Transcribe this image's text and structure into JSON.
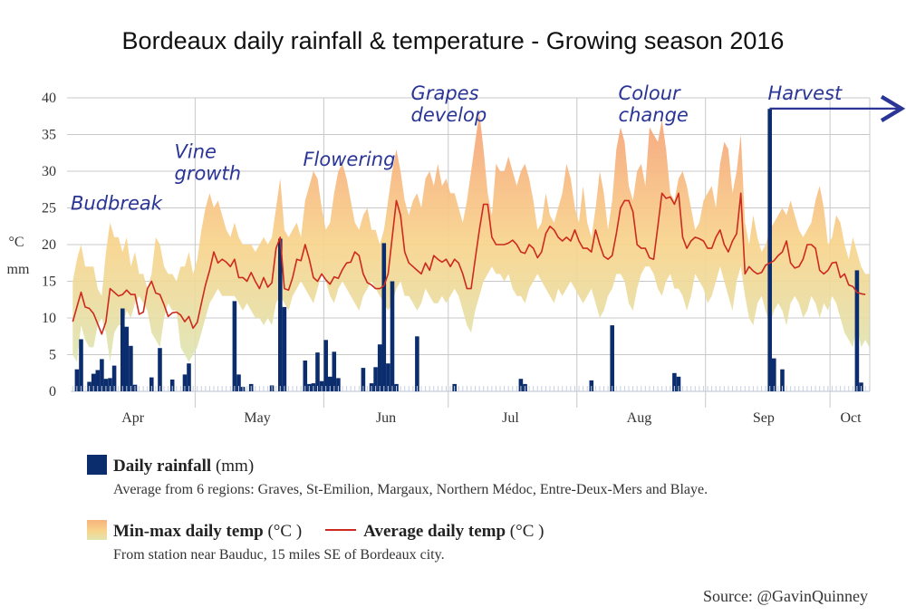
{
  "title": "Bordeaux daily rainfall & temperature - Growing season 2016",
  "legend": {
    "rain_label": "Daily rainfall",
    "rain_unit": " (mm)",
    "rain_desc": "Average from 6 regions: Graves, St-Emilion, Margaux, Northern Médoc, Entre-Deux-Mers and Blaye.",
    "temp_range_label": "Min-max daily temp",
    "temp_range_unit": " (°C )",
    "temp_avg_label": "Average daily temp",
    "temp_avg_unit": " (°C )",
    "temp_desc": "From station near Bauduc, 15 miles SE of Bordeaux city."
  },
  "source": "Source: @GavinQuinney",
  "colors": {
    "rain": "#0b2d6e",
    "avg_line": "#cc2a1e",
    "band_top": "#f6a97a",
    "band_mid": "#f8d48c",
    "band_bottom": "#dfe4b2",
    "annotation": "#2a3596",
    "grid": "#c8c8c8"
  },
  "chart_data": {
    "type": "bar+area+line",
    "title": "Bordeaux daily rainfall & temperature - Growing season 2016",
    "ylabel": [
      "°C",
      "mm"
    ],
    "ylim": [
      0,
      40
    ],
    "yticks": [
      0,
      5,
      10,
      15,
      20,
      25,
      30,
      35,
      40
    ],
    "start_date": "2016-04-01",
    "n_days": 193,
    "month_ticks": [
      {
        "label": "Apr",
        "day": 0,
        "label_day": 15
      },
      {
        "label": "May",
        "day": 30,
        "label_day": 45
      },
      {
        "label": "Jun",
        "day": 61,
        "label_day": 76
      },
      {
        "label": "Jul",
        "day": 91,
        "label_day": 106
      },
      {
        "label": "Aug",
        "day": 122,
        "label_day": 137
      },
      {
        "label": "Sep",
        "day": 153,
        "label_day": 167
      },
      {
        "label": "Oct",
        "day": 183,
        "label_day": 188
      }
    ],
    "annotations": [
      {
        "lines": [
          "Budbreak"
        ],
        "day": 0,
        "value": 26
      },
      {
        "lines": [
          "Vine",
          "growth"
        ],
        "day": 25,
        "value": 33
      },
      {
        "lines": [
          "Flowering"
        ],
        "day": 56,
        "value": 32
      },
      {
        "lines": [
          "Grapes",
          "develop"
        ],
        "day": 82,
        "value": 41
      },
      {
        "lines": [
          "Colour",
          "change"
        ],
        "day": 132,
        "value": 41
      },
      {
        "lines": [
          "Harvest"
        ],
        "day": 168,
        "value": 41,
        "arrow": true
      }
    ],
    "series": [
      {
        "name": "Daily rainfall (mm)",
        "type": "bar",
        "values": [
          0,
          3.0,
          7.1,
          0,
          1.3,
          2.4,
          2.9,
          4.4,
          1.7,
          1.8,
          3.5,
          0,
          11.3,
          8.8,
          6.2,
          0.9,
          0,
          0,
          0,
          1.9,
          0,
          5.9,
          0,
          0,
          1.6,
          0,
          0,
          2.3,
          3.8,
          0,
          0,
          0,
          0,
          0,
          0,
          0,
          0,
          0,
          0,
          12.3,
          2.3,
          0.6,
          0,
          1.0,
          0,
          0,
          0,
          0,
          0.8,
          0,
          20.8,
          11.5,
          0,
          0,
          0,
          0,
          4.2,
          1.0,
          1.1,
          5.3,
          1.4,
          7.0,
          2.0,
          5.4,
          1.8,
          0,
          0,
          0,
          0,
          0,
          3.2,
          0,
          1.1,
          3.3,
          6.4,
          20.2,
          3.8,
          15.0,
          1.0,
          0,
          0,
          0,
          0,
          7.5,
          0,
          0,
          0,
          0,
          0,
          0,
          0,
          0,
          1.0,
          0,
          0,
          0,
          0,
          0,
          0,
          0,
          0,
          0,
          0,
          0,
          0,
          0,
          0,
          0,
          1.7,
          1.0,
          0,
          0,
          0,
          0,
          0,
          0,
          0,
          0,
          0,
          0,
          0,
          0,
          0,
          0,
          0,
          1.5,
          0,
          0,
          0,
          0,
          9.0,
          0,
          0,
          0,
          0,
          0,
          0,
          0,
          0,
          0,
          0,
          0,
          0,
          0,
          0,
          2.5,
          2.0,
          0,
          0,
          0,
          0,
          0,
          0,
          0,
          0,
          0,
          0,
          0,
          0,
          0,
          0,
          0,
          0,
          0,
          0,
          0,
          0,
          0,
          38.5,
          4.5,
          0,
          3.0,
          0,
          0,
          0,
          0,
          0,
          0,
          0,
          0,
          0,
          0,
          0,
          0,
          0,
          0,
          0,
          0,
          0,
          16.5,
          1.2,
          0,
          0,
          0,
          0,
          0,
          0,
          0,
          0,
          0,
          0,
          0,
          0
        ]
      },
      {
        "name": "Max daily temp (°C)",
        "type": "area-top",
        "values": [
          15,
          18,
          20,
          17,
          17,
          17,
          14,
          13,
          19,
          23,
          21,
          21,
          19,
          21,
          17,
          19,
          16,
          16,
          14,
          16,
          21,
          20,
          17,
          16,
          16,
          15,
          17,
          17,
          19,
          16,
          18,
          22,
          25,
          27,
          25,
          26,
          24,
          22,
          21,
          23,
          21,
          20,
          20,
          20,
          19,
          20,
          21,
          20,
          21,
          25,
          29,
          22,
          21,
          22,
          23,
          21,
          26,
          28,
          30,
          29,
          25,
          22,
          23,
          27,
          30,
          31,
          29,
          26,
          23,
          22,
          24,
          25,
          22,
          22,
          20,
          22,
          26,
          30,
          33,
          30,
          26,
          24,
          26,
          27,
          25,
          29,
          30,
          28,
          31,
          28,
          29,
          27,
          27,
          25,
          23,
          26,
          30,
          34,
          38,
          33,
          27,
          24,
          31,
          30,
          30,
          32,
          30,
          28,
          30,
          31,
          29,
          26,
          22,
          23,
          27,
          24,
          23,
          25,
          27,
          31,
          29,
          25,
          23,
          28,
          23,
          21,
          25,
          30,
          27,
          22,
          26,
          33,
          36,
          34,
          28,
          26,
          30,
          31,
          28,
          36,
          35,
          34,
          37,
          33,
          27,
          26,
          29,
          30,
          28,
          25,
          22,
          23,
          26,
          27,
          28,
          25,
          31,
          34,
          33,
          27,
          30,
          35,
          23,
          20,
          24,
          21,
          19,
          20,
          22,
          23,
          24,
          25,
          24,
          26,
          24,
          22,
          21,
          22,
          23,
          26,
          28,
          25,
          20,
          21,
          24,
          23,
          20,
          18,
          21,
          19,
          17,
          16,
          16
        ]
      },
      {
        "name": "Min daily temp (°C)",
        "type": "area-bottom",
        "values": [
          5,
          4,
          9,
          7,
          6,
          6,
          9,
          10,
          8,
          4,
          8,
          9,
          9,
          11,
          10,
          12,
          13,
          12,
          11,
          8,
          7,
          6,
          10,
          12,
          11,
          11,
          6,
          5,
          4,
          5,
          6,
          8,
          10,
          12,
          13,
          14,
          13,
          13,
          13,
          13,
          12,
          11,
          12,
          11,
          10,
          10,
          9,
          10,
          9,
          12,
          13,
          12,
          11,
          13,
          14,
          15,
          14,
          13,
          12,
          14,
          16,
          15,
          13,
          12,
          14,
          15,
          14,
          13,
          12,
          11,
          13,
          14,
          15,
          14,
          13,
          12,
          11,
          12,
          14,
          15,
          13,
          13,
          12,
          11,
          12,
          14,
          13,
          12,
          12,
          13,
          12,
          13,
          14,
          13,
          11,
          9,
          8,
          11,
          13,
          15,
          16,
          17,
          16,
          16,
          15,
          16,
          14,
          13,
          13,
          12,
          14,
          15,
          16,
          15,
          14,
          13,
          12,
          14,
          13,
          14,
          15,
          14,
          13,
          12,
          13,
          14,
          12,
          10,
          11,
          13,
          14,
          16,
          16,
          15,
          12,
          11,
          14,
          16,
          17,
          17,
          16,
          14,
          13,
          15,
          16,
          14,
          14,
          13,
          11,
          13,
          16,
          15,
          14,
          12,
          13,
          15,
          17,
          15,
          13,
          11,
          15,
          17,
          13,
          10,
          9,
          12,
          13,
          11,
          9,
          11,
          12,
          11,
          9,
          12,
          13,
          12,
          10,
          11,
          13,
          12,
          10,
          12,
          11,
          13,
          12,
          10,
          8,
          7,
          6,
          9,
          6,
          7,
          6
        ]
      },
      {
        "name": "Average daily temp (°C)",
        "type": "line",
        "values": [
          9.5,
          11.5,
          13.5,
          11.5,
          11.3,
          10.6,
          9.2,
          7.8,
          9.5,
          14.0,
          13.5,
          13.0,
          13.2,
          13.8,
          13.2,
          13.2,
          10.5,
          10.8,
          14.0,
          15.0,
          13.4,
          13.2,
          11.8,
          10.2,
          10.7,
          10.8,
          10.4,
          9.5,
          10.2,
          8.6,
          9.4,
          12.0,
          14.5,
          16.5,
          19.0,
          17.5,
          18.0,
          17.6,
          17.0,
          18.0,
          15.5,
          15.5,
          15.0,
          16.2,
          15.0,
          14.0,
          15.5,
          14.2,
          14.8,
          19.5,
          21.0,
          14.0,
          13.8,
          15.5,
          18.0,
          17.8,
          20.0,
          18.0,
          15.5,
          15.0,
          16.0,
          15.2,
          14.6,
          15.6,
          15.4,
          16.6,
          17.5,
          17.6,
          19.0,
          18.5,
          16.0,
          14.8,
          14.5,
          14.0,
          14.0,
          14.4,
          16.0,
          21.0,
          26.0,
          24.0,
          19.0,
          17.5,
          17.0,
          16.5,
          16.0,
          17.5,
          16.5,
          18.5,
          18.0,
          17.6,
          18.0,
          17.0,
          18.0,
          17.5,
          16.0,
          14.0,
          14.0,
          18.0,
          22.0,
          25.5,
          25.5,
          21.0,
          20.0,
          20.0,
          20.0,
          20.2,
          20.6,
          20.0,
          19.0,
          18.8,
          20.0,
          19.5,
          18.2,
          19.0,
          21.5,
          22.5,
          22.0,
          21.0,
          20.5,
          21.0,
          20.5,
          22.0,
          20.5,
          19.5,
          19.5,
          19.0,
          22.0,
          20.0,
          18.4,
          18.0,
          18.5,
          21.5,
          25.0,
          26.0,
          26.0,
          24.5,
          20.0,
          19.5,
          19.5,
          18.2,
          18.0,
          22.5,
          27.0,
          26.3,
          26.5,
          25.5,
          27.0,
          21.0,
          19.5,
          20.5,
          21.0,
          20.8,
          20.5,
          19.5,
          19.5,
          21.0,
          22.0,
          20.0,
          19.0,
          20.5,
          21.5,
          27.0,
          16.0,
          17.0,
          16.4,
          16.0,
          16.2,
          17.2,
          17.5,
          17.8,
          18.5,
          19.0,
          20.5,
          17.5,
          16.8,
          17.0,
          18.0,
          20.0,
          20.0,
          19.5,
          16.5,
          16.0,
          16.5,
          17.5,
          17.6,
          15.5,
          16.0,
          14.5,
          14.3,
          13.5,
          13.3,
          13.2
        ]
      }
    ]
  }
}
